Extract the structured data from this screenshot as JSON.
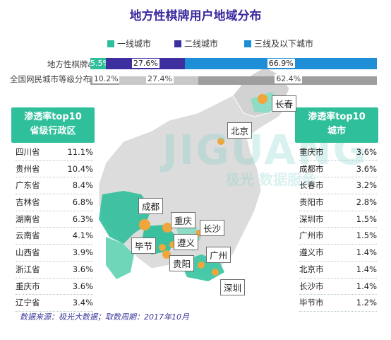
{
  "title": "地方性棋牌用户地域分布",
  "legend": [
    {
      "label": "一线城市",
      "color": "#2fbf9b"
    },
    {
      "label": "二线城市",
      "color": "#3d2f9e"
    },
    {
      "label": "三线及以下城市",
      "color": "#1e8fd6"
    }
  ],
  "watermark": {
    "brand": "JIGUANG",
    "cn": "极光 数据服务"
  },
  "chart_data": [
    {
      "type": "bar",
      "stacked": true,
      "orientation": "horizontal",
      "categories": [
        "地方性棋牌app",
        "全国网民城市等级分布"
      ],
      "series": [
        {
          "name": "一线城市",
          "values": [
            5.5,
            10.2
          ]
        },
        {
          "name": "二线城市",
          "values": [
            27.6,
            27.4
          ]
        },
        {
          "name": "三线及以下城市",
          "values": [
            66.9,
            62.4
          ]
        }
      ],
      "labels": [
        [
          "5.5%",
          "27.6%",
          "66.9%"
        ],
        [
          "10.2%",
          "27.4%",
          "62.4%"
        ]
      ],
      "xlim": [
        0,
        100
      ]
    },
    {
      "type": "table",
      "title": "渗透率top10省级行政区",
      "rows": [
        [
          "四川省",
          "11.1%"
        ],
        [
          "贵州省",
          "10.4%"
        ],
        [
          "广东省",
          "8.4%"
        ],
        [
          "吉林省",
          "6.8%"
        ],
        [
          "湖南省",
          "6.3%"
        ],
        [
          "云南省",
          "4.1%"
        ],
        [
          "山西省",
          "3.9%"
        ],
        [
          "浙江省",
          "3.6%"
        ],
        [
          "重庆市",
          "3.6%"
        ],
        [
          "辽宁省",
          "3.4%"
        ]
      ]
    },
    {
      "type": "table",
      "title": "渗透率top10城市",
      "rows": [
        [
          "重庆市",
          "3.6%"
        ],
        [
          "成都市",
          "3.6%"
        ],
        [
          "长春市",
          "3.2%"
        ],
        [
          "贵阳市",
          "2.8%"
        ],
        [
          "深圳市",
          "1.5%"
        ],
        [
          "广州市",
          "1.5%"
        ],
        [
          "遵义市",
          "1.4%"
        ],
        [
          "北京市",
          "1.4%"
        ],
        [
          "长沙市",
          "1.4%"
        ],
        [
          "毕节市",
          "1.2%"
        ]
      ]
    }
  ],
  "left_panel_title": [
    "渗透率top10",
    "省级行政区"
  ],
  "right_panel_title": [
    "渗透率top10",
    "城市"
  ],
  "map_cities": [
    "长春",
    "北京",
    "成都",
    "重庆",
    "长沙",
    "毕节",
    "遵义",
    "广州",
    "贵阳",
    "深圳"
  ],
  "footer": "数据来源：极光大数据；取数周期：2017年10月"
}
